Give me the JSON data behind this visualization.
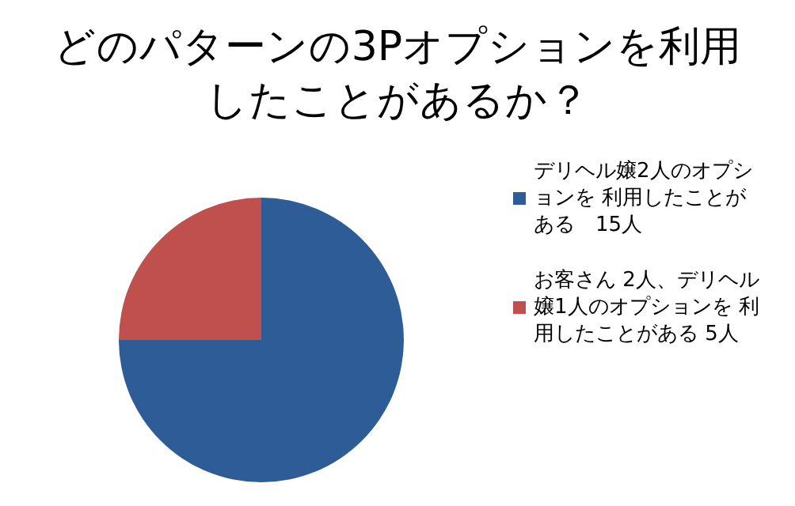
{
  "chart_data": {
    "type": "pie",
    "title": "どのパターンの3Pオプションを利用したことがあるか？",
    "categories": [
      "デリヘル嬢2人のオプションを 利用したことがある　15人",
      "お客さん 2人、デリヘル嬢1人のオプションを 利用したことがある 5人"
    ],
    "values": [
      15,
      5
    ],
    "colors": [
      "#2e5c96",
      "#c0504d"
    ],
    "legend": "right"
  }
}
